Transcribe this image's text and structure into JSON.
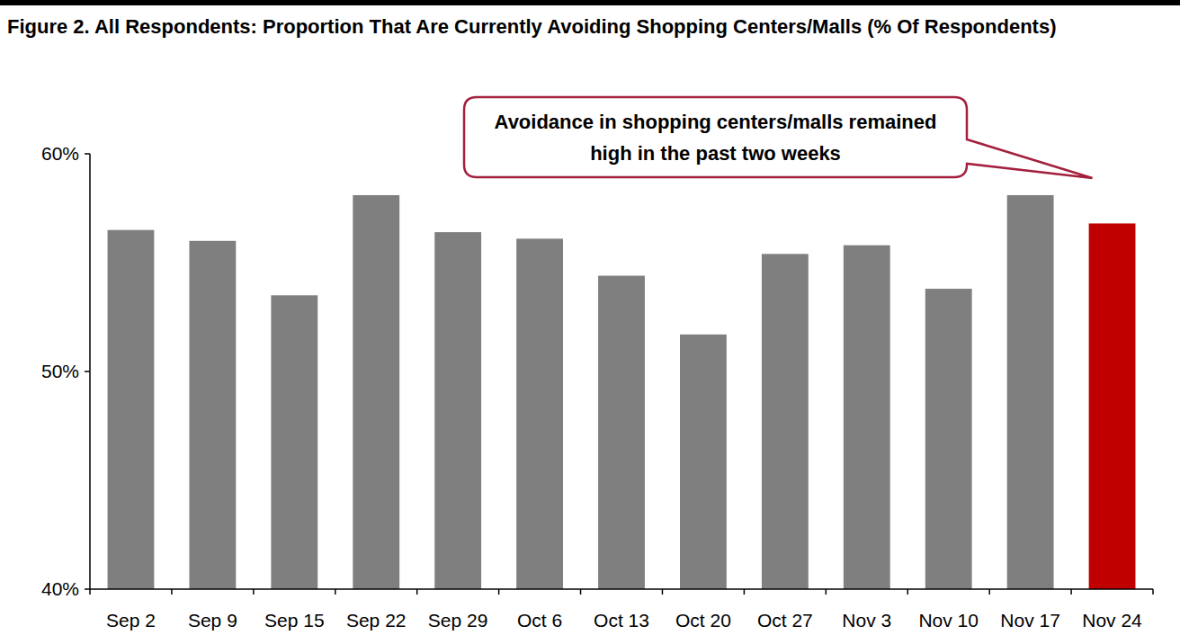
{
  "chart_data": {
    "type": "bar",
    "title": "Figure 2. All Respondents: Proportion That Are Currently Avoiding Shopping Centers/Malls (% Of Respondents)",
    "annotations": [
      "Avoidance in shopping centers/malls remained high in the past two weeks"
    ],
    "categories": [
      "Sep 2",
      "Sep 9",
      "Sep 15",
      "Sep 22",
      "Sep 29",
      "Oct 6",
      "Oct 13",
      "Oct 20",
      "Oct 27",
      "Nov 3",
      "Nov 10",
      "Nov 17",
      "Nov 24"
    ],
    "values": [
      56.5,
      56.0,
      53.5,
      58.1,
      56.4,
      56.1,
      54.4,
      51.7,
      55.4,
      55.8,
      53.8,
      58.1,
      56.8
    ],
    "colors": [
      "#7f7f7f",
      "#7f7f7f",
      "#7f7f7f",
      "#7f7f7f",
      "#7f7f7f",
      "#7f7f7f",
      "#7f7f7f",
      "#7f7f7f",
      "#7f7f7f",
      "#7f7f7f",
      "#7f7f7f",
      "#7f7f7f",
      "#c00000"
    ],
    "ylim": [
      40,
      60
    ],
    "yticks": [
      {
        "value": 40,
        "label": "40%"
      },
      {
        "value": 50,
        "label": "50%"
      },
      {
        "value": 60,
        "label": "60%"
      }
    ],
    "grid": false
  }
}
